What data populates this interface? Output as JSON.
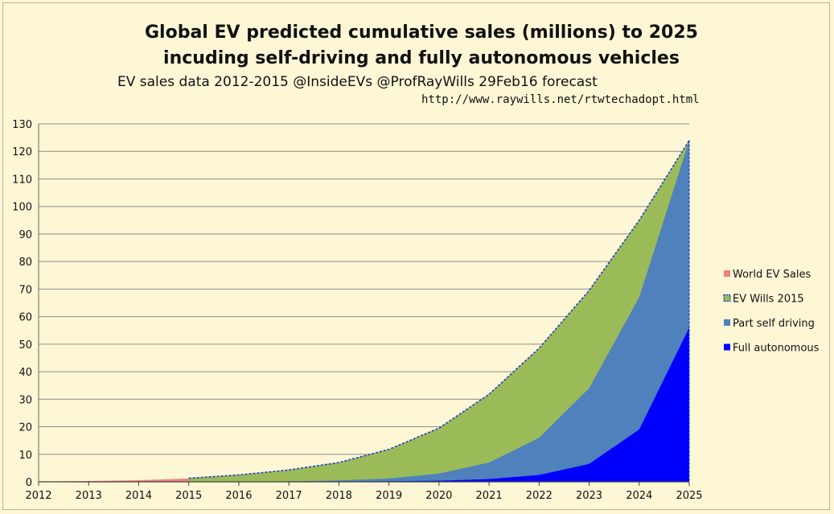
{
  "title_line1": "Global EV predicted cumulative sales (millions) to 2025",
  "title_line2": "incuding self-driving and fully autonomous vehicles",
  "subtitle": "EV sales data 2012-2015 @InsideEVs    @ProfRayWills 29Feb16 forecast",
  "source_url": "http://www.raywills.net/rtwtechadopt.html",
  "chart_data": {
    "type": "area",
    "x": [
      2012,
      2013,
      2014,
      2015,
      2016,
      2017,
      2018,
      2019,
      2020,
      2021,
      2022,
      2023,
      2024,
      2025
    ],
    "xticks": [
      "2012",
      "2013",
      "2014",
      "2015",
      "2016",
      "2017",
      "2018",
      "2019",
      "2020",
      "2021",
      "2022",
      "2023",
      "2024",
      "2025"
    ],
    "yticks": [
      "0",
      "10",
      "20",
      "30",
      "40",
      "50",
      "60",
      "70",
      "80",
      "90",
      "100",
      "110",
      "120",
      "130"
    ],
    "ylim": [
      0,
      130
    ],
    "grid": true,
    "legend_position": "right",
    "series": [
      {
        "name": "World EV Sales",
        "color": "#f08080",
        "values": [
          0.1,
          0.3,
          0.6,
          1.2,
          null,
          null,
          null,
          null,
          null,
          null,
          null,
          null,
          null,
          null
        ]
      },
      {
        "name": "EV Wills 2015",
        "color": "#9bbb59",
        "border": "#1f3fbf",
        "values": [
          null,
          null,
          null,
          1.3,
          2.5,
          4.3,
          7.0,
          11.8,
          19.5,
          31.8,
          48.5,
          69.5,
          95.0,
          124.0
        ]
      },
      {
        "name": "Part self driving",
        "color": "#4f81bd",
        "values": [
          null,
          null,
          null,
          0,
          0.05,
          0.2,
          0.5,
          1.2,
          3.0,
          7.0,
          16.0,
          34.0,
          67.0,
          124.0
        ]
      },
      {
        "name": "Full autonomous",
        "color": "#0000ff",
        "values": [
          null,
          null,
          null,
          0,
          0,
          0,
          0.1,
          0.2,
          0.4,
          1.0,
          2.5,
          6.5,
          19.0,
          56.0
        ]
      }
    ]
  }
}
